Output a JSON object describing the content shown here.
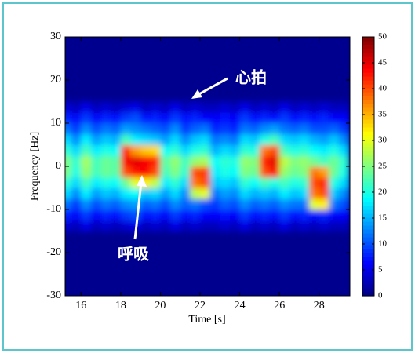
{
  "chart_data": {
    "type": "heatmap",
    "xlabel": "Time [s]",
    "ylabel": "Frequency [Hz]",
    "xlim": [
      15.2,
      29.55
    ],
    "ylim": [
      -30,
      30
    ],
    "xticks": [
      16,
      18,
      20,
      22,
      24,
      26,
      28
    ],
    "yticks": [
      -30,
      -20,
      -10,
      0,
      10,
      20,
      30
    ],
    "x_edges": [
      15,
      15.5,
      16,
      16.5,
      17,
      17.5,
      18,
      18.5,
      19,
      19.5,
      20,
      20.5,
      21,
      21.5,
      22,
      22.5,
      23,
      23.5,
      24,
      24.5,
      25,
      25.5,
      26,
      26.5,
      27,
      27.5,
      28,
      28.5,
      29,
      29.5
    ],
    "y_edges": [
      -15,
      -12.5,
      -10,
      -7.5,
      -5,
      -2.5,
      0,
      2.5,
      5,
      7.5,
      10,
      12.5,
      15
    ],
    "z": [
      [
        4,
        3,
        5,
        3,
        4,
        3,
        4,
        5,
        3,
        4,
        3,
        5,
        3,
        4,
        3,
        3,
        4,
        3,
        5,
        3,
        4,
        3,
        5,
        3,
        4,
        3,
        4,
        3,
        3
      ],
      [
        8,
        6,
        9,
        6,
        8,
        7,
        9,
        10,
        7,
        8,
        6,
        9,
        7,
        8,
        6,
        6,
        7,
        6,
        9,
        7,
        8,
        7,
        9,
        7,
        8,
        7,
        8,
        6,
        6
      ],
      [
        12,
        9,
        13,
        10,
        12,
        11,
        13,
        14,
        11,
        12,
        10,
        13,
        11,
        12,
        10,
        9,
        11,
        10,
        13,
        11,
        12,
        11,
        13,
        12,
        12,
        30,
        32,
        12,
        10
      ],
      [
        17,
        13,
        18,
        14,
        16,
        15,
        18,
        19,
        16,
        17,
        14,
        17,
        13,
        28,
        30,
        12,
        14,
        13,
        17,
        15,
        16,
        15,
        18,
        16,
        17,
        38,
        40,
        16,
        13
      ],
      [
        21,
        17,
        22,
        18,
        20,
        19,
        24,
        30,
        32,
        28,
        18,
        21,
        17,
        38,
        40,
        16,
        17,
        16,
        21,
        19,
        22,
        20,
        22,
        20,
        21,
        40,
        42,
        20,
        17
      ],
      [
        25,
        20,
        26,
        22,
        24,
        23,
        40,
        43,
        44,
        40,
        22,
        25,
        21,
        40,
        41,
        18,
        20,
        19,
        25,
        24,
        40,
        43,
        26,
        24,
        25,
        38,
        36,
        24,
        20
      ],
      [
        25,
        21,
        27,
        22,
        24,
        23,
        44,
        45,
        44,
        42,
        23,
        26,
        22,
        26,
        27,
        19,
        21,
        20,
        26,
        25,
        42,
        45,
        28,
        25,
        26,
        24,
        22,
        24,
        21
      ],
      [
        21,
        17,
        22,
        18,
        20,
        19,
        42,
        36,
        34,
        33,
        19,
        21,
        17,
        20,
        21,
        15,
        17,
        16,
        21,
        20,
        38,
        40,
        22,
        20,
        21,
        19,
        18,
        20,
        17
      ],
      [
        17,
        13,
        18,
        14,
        16,
        15,
        22,
        18,
        17,
        16,
        14,
        17,
        13,
        16,
        17,
        12,
        13,
        12,
        17,
        16,
        20,
        22,
        17,
        16,
        17,
        15,
        14,
        16,
        13
      ],
      [
        12,
        9,
        13,
        10,
        12,
        11,
        14,
        13,
        12,
        11,
        10,
        13,
        9,
        11,
        12,
        8,
        9,
        8,
        12,
        11,
        13,
        14,
        12,
        11,
        12,
        10,
        10,
        11,
        9
      ],
      [
        8,
        6,
        9,
        6,
        8,
        7,
        9,
        10,
        7,
        8,
        6,
        9,
        7,
        8,
        6,
        6,
        7,
        6,
        9,
        7,
        8,
        7,
        9,
        7,
        8,
        7,
        8,
        6,
        6
      ],
      [
        4,
        3,
        5,
        3,
        4,
        3,
        4,
        5,
        3,
        4,
        3,
        5,
        3,
        4,
        3,
        3,
        4,
        3,
        5,
        3,
        4,
        3,
        5,
        3,
        4,
        3,
        4,
        3,
        3
      ]
    ],
    "clim": [
      0,
      50
    ],
    "cticks": [
      0,
      5,
      10,
      15,
      20,
      25,
      30,
      35,
      40,
      45,
      50
    ],
    "colormap": "jet",
    "annotations": [
      {
        "text": "心拍"
      },
      {
        "text": "呼吸"
      }
    ]
  }
}
